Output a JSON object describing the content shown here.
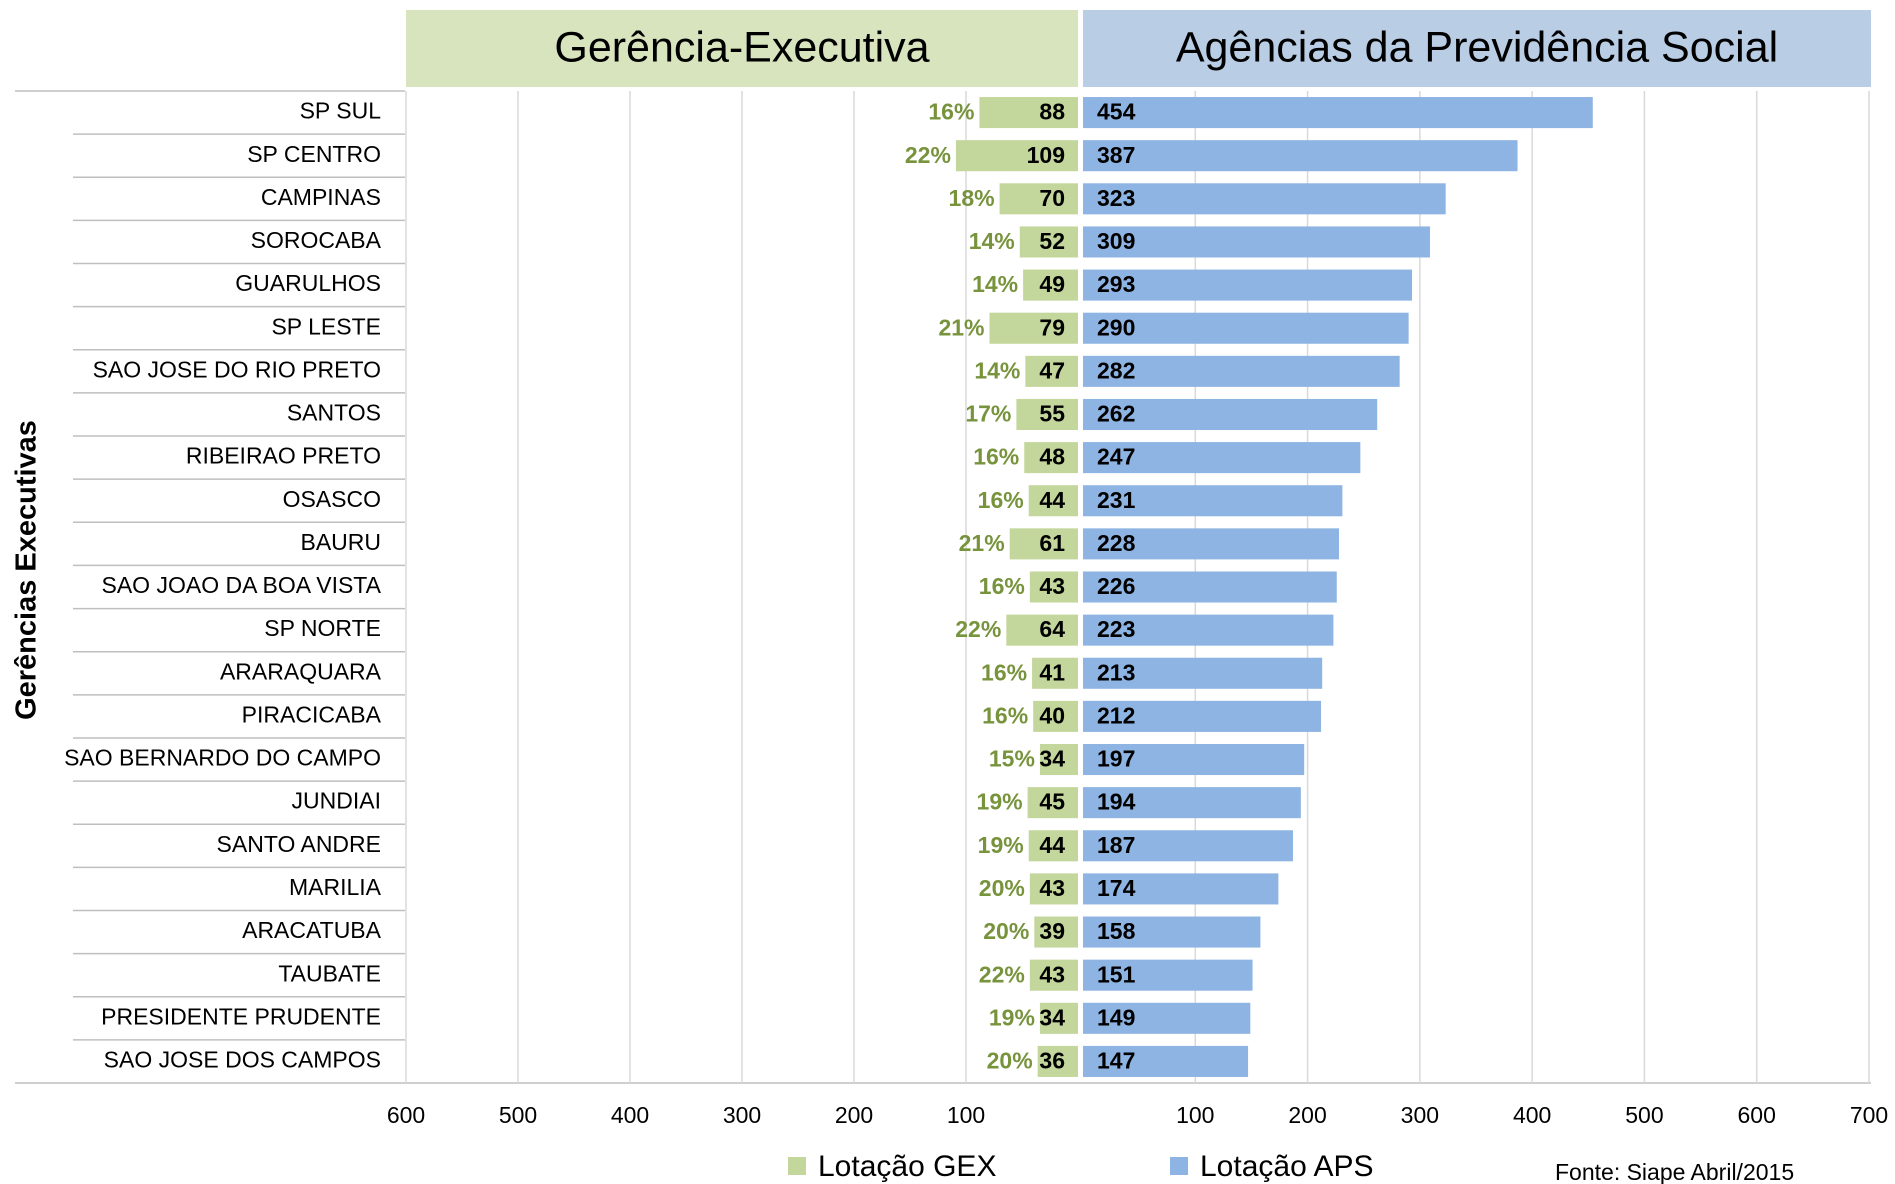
{
  "chart_data": {
    "type": "butterfly",
    "panel_titles": [
      "Gerência-Executiva",
      "Agências da Previdência Social"
    ],
    "y_label": "Gerências Executivas",
    "source": "Fonte: Siape Abril/2015",
    "categories": [
      "SP SUL",
      "SP CENTRO",
      "CAMPINAS",
      "SOROCABA",
      "GUARULHOS",
      "SP LESTE",
      "SAO JOSE DO RIO PRETO",
      "SANTOS",
      "RIBEIRAO PRETO",
      "OSASCO",
      "BAURU",
      "SAO JOAO DA BOA VISTA",
      "SP NORTE",
      "ARARAQUARA",
      "PIRACICABA",
      "SAO BERNARDO DO CAMPO",
      "JUNDIAI",
      "SANTO ANDRE",
      "MARILIA",
      "ARACATUBA",
      "TAUBATE",
      "PRESIDENTE PRUDENTE",
      "SAO JOSE DOS CAMPOS"
    ],
    "series": [
      {
        "name": "Lotação GEX",
        "color": "#c3d69b",
        "side": "left",
        "values": [
          88,
          109,
          70,
          52,
          49,
          79,
          47,
          55,
          48,
          44,
          61,
          43,
          64,
          41,
          40,
          34,
          45,
          44,
          43,
          39,
          43,
          34,
          36
        ],
        "share_labels": [
          "16%",
          "22%",
          "18%",
          "14%",
          "14%",
          "21%",
          "14%",
          "17%",
          "16%",
          "16%",
          "21%",
          "16%",
          "22%",
          "16%",
          "16%",
          "15%",
          "19%",
          "19%",
          "20%",
          "20%",
          "22%",
          "19%",
          "20%"
        ]
      },
      {
        "name": "Lotação APS",
        "color": "#8eb4e3",
        "side": "right",
        "values": [
          454,
          387,
          323,
          309,
          293,
          290,
          282,
          262,
          247,
          231,
          228,
          226,
          223,
          213,
          212,
          197,
          194,
          187,
          174,
          158,
          151,
          149,
          147
        ]
      }
    ],
    "xlim": [
      0,
      600
    ],
    "xticks": [
      600,
      500,
      400,
      300,
      200,
      100
    ],
    "x2lim": [
      0,
      700
    ],
    "x2ticks": [
      100,
      200,
      300,
      400,
      500,
      600,
      700
    ],
    "grid": true
  }
}
